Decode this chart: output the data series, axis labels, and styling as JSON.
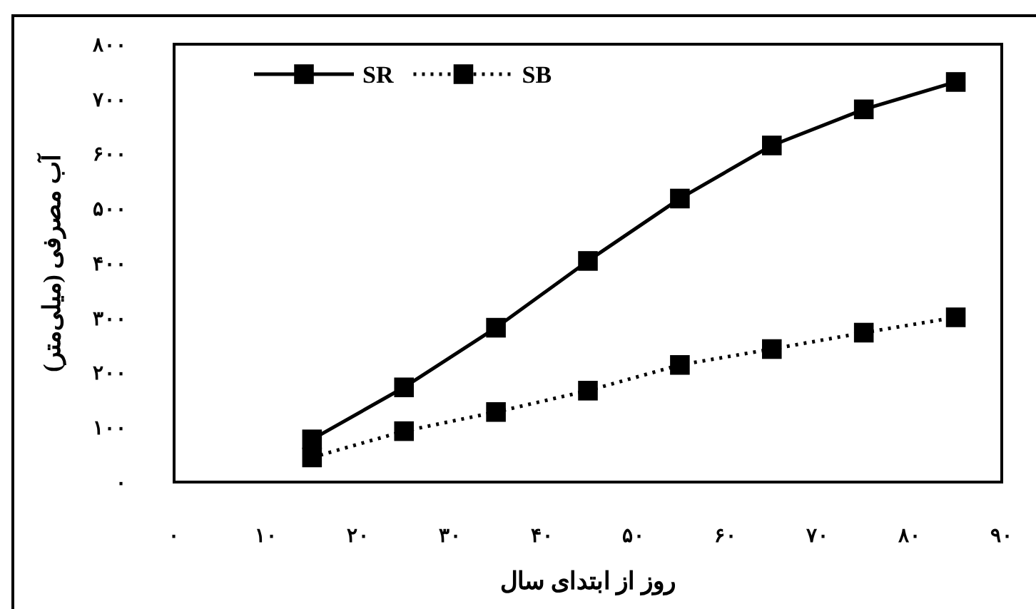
{
  "chart_data": {
    "type": "line",
    "xlabel": "روز از ابتدای سال",
    "ylabel": "آب مصرفی (میلی‌متر)",
    "x": [
      15,
      25,
      35,
      45,
      55,
      65,
      75,
      85
    ],
    "series": [
      {
        "name": "SR",
        "color": "#000000",
        "line_style": "solid",
        "values": [
          78,
          173,
          282,
          404,
          518,
          615,
          681,
          731
        ]
      },
      {
        "name": "SB",
        "color": "#000000",
        "line_style": "dotted",
        "values": [
          45,
          93,
          128,
          167,
          214,
          243,
          273,
          301
        ]
      }
    ],
    "marker": "square",
    "legend": "top left",
    "grid": false,
    "xlim": [
      0,
      90
    ],
    "ylim": [
      0,
      800
    ],
    "xticks": [
      {
        "value": 0,
        "label": "۰"
      },
      {
        "value": 10,
        "label": "۱۰"
      },
      {
        "value": 20,
        "label": "۲۰"
      },
      {
        "value": 30,
        "label": "۳۰"
      },
      {
        "value": 40,
        "label": "۴۰"
      },
      {
        "value": 50,
        "label": "۵۰"
      },
      {
        "value": 60,
        "label": "۶۰"
      },
      {
        "value": 70,
        "label": "۷۰"
      },
      {
        "value": 80,
        "label": "۸۰"
      },
      {
        "value": 90,
        "label": "۹۰"
      }
    ],
    "yticks": [
      {
        "value": 0,
        "label": "۰"
      },
      {
        "value": 100,
        "label": "۱۰۰"
      },
      {
        "value": 200,
        "label": "۲۰۰"
      },
      {
        "value": 300,
        "label": "۳۰۰"
      },
      {
        "value": 400,
        "label": "۴۰۰"
      },
      {
        "value": 500,
        "label": "۵۰۰"
      },
      {
        "value": 600,
        "label": "۶۰۰"
      },
      {
        "value": 700,
        "label": "۷۰۰"
      },
      {
        "value": 800,
        "label": "۸۰۰"
      }
    ]
  }
}
